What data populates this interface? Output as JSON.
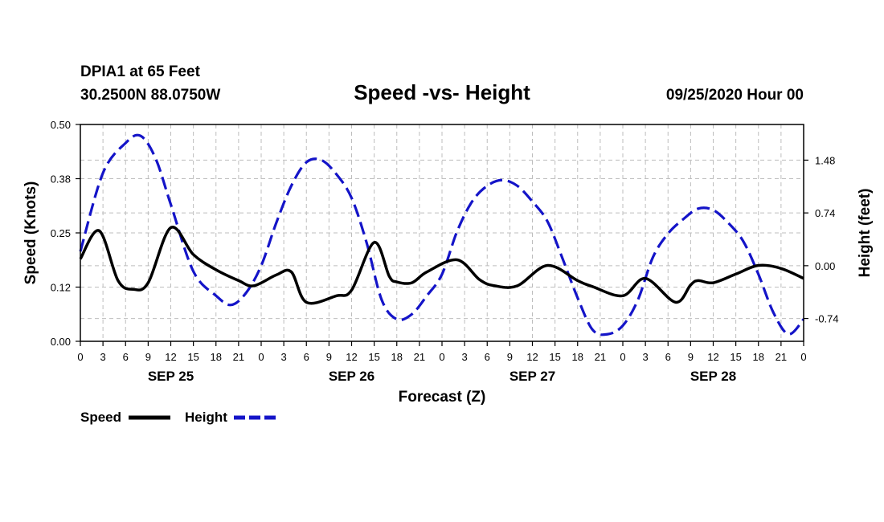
{
  "header": {
    "station": "DPIA1 at 65 Feet",
    "coords": "30.2500N 88.0750W",
    "title": "Speed -vs- Height",
    "datetime": "09/25/2020 Hour 00"
  },
  "legend": {
    "speed": "Speed",
    "height": "Height"
  },
  "colors": {
    "speed": "#000000",
    "height": "#1414c8",
    "grid": "#bdbdbd"
  },
  "chart_data": {
    "type": "line",
    "title": "Speed -vs- Height",
    "xlabel": "Forecast (Z)",
    "ylabel_left": "Speed (Knots)",
    "ylabel_right": "Height (feet)",
    "xlim": [
      0,
      96
    ],
    "ylim_left": [
      0,
      0.5
    ],
    "ylim_right": [
      -1.06,
      1.98
    ],
    "left_ticks": [
      "0.00",
      "0.12",
      "0.25",
      "0.38",
      "0.50"
    ],
    "left_tick_values": [
      0,
      0.125,
      0.25,
      0.375,
      0.5
    ],
    "right_ticks": [
      "-0.74",
      "0.00",
      "0.74",
      "1.48"
    ],
    "right_tick_values": [
      -0.74,
      0,
      0.74,
      1.48
    ],
    "x_tick_labels": [
      "0",
      "3",
      "6",
      "9",
      "12",
      "15",
      "18",
      "21",
      "0",
      "3",
      "6",
      "9",
      "12",
      "15",
      "18",
      "21",
      "0",
      "3",
      "6",
      "9",
      "12",
      "15",
      "18",
      "21",
      "0",
      "3",
      "6",
      "9",
      "12",
      "15",
      "18",
      "21",
      "0"
    ],
    "day_labels": [
      {
        "label": "SEP 25",
        "hour": 12
      },
      {
        "label": "SEP 26",
        "hour": 36
      },
      {
        "label": "SEP 27",
        "hour": 60
      },
      {
        "label": "SEP 28",
        "hour": 84
      }
    ],
    "grid": true,
    "series": [
      {
        "name": "Speed",
        "axis": "left",
        "style": "solid",
        "x": [
          0,
          2.5,
          5,
          7,
          9,
          12,
          15,
          18,
          21,
          23,
          26,
          28,
          30,
          34,
          36,
          39,
          41,
          42,
          44,
          46,
          50,
          53,
          55,
          58,
          62,
          66,
          68,
          72,
          75,
          79,
          81,
          82,
          84,
          87,
          90,
          93,
          96
        ],
        "y": [
          0.19,
          0.255,
          0.14,
          0.12,
          0.135,
          0.262,
          0.2,
          0.165,
          0.14,
          0.128,
          0.153,
          0.16,
          0.09,
          0.105,
          0.118,
          0.228,
          0.15,
          0.137,
          0.135,
          0.16,
          0.188,
          0.142,
          0.128,
          0.128,
          0.175,
          0.14,
          0.126,
          0.105,
          0.145,
          0.09,
          0.13,
          0.14,
          0.135,
          0.155,
          0.175,
          0.168,
          0.145
        ]
      },
      {
        "name": "Height",
        "axis": "right",
        "style": "dashed",
        "x": [
          0,
          3,
          6,
          8,
          10,
          12,
          15,
          18,
          20,
          22,
          24,
          26,
          28,
          30,
          32,
          34,
          36,
          38,
          40,
          42,
          44,
          46,
          48,
          50,
          52,
          54,
          56,
          58,
          60,
          62,
          64,
          66,
          68,
          70,
          72,
          74,
          76,
          78,
          80,
          82,
          84,
          86,
          88,
          90,
          92,
          94,
          96
        ],
        "y": [
          0.2,
          1.3,
          1.72,
          1.82,
          1.5,
          0.86,
          -0.08,
          -0.42,
          -0.55,
          -0.38,
          0.0,
          0.6,
          1.12,
          1.45,
          1.48,
          1.28,
          0.95,
          0.32,
          -0.48,
          -0.75,
          -0.68,
          -0.42,
          -0.12,
          0.48,
          0.9,
          1.12,
          1.2,
          1.12,
          0.9,
          0.62,
          0.1,
          -0.45,
          -0.9,
          -0.96,
          -0.84,
          -0.48,
          0.12,
          0.45,
          0.65,
          0.8,
          0.78,
          0.6,
          0.34,
          -0.12,
          -0.66,
          -0.96,
          -0.75
        ]
      }
    ]
  }
}
